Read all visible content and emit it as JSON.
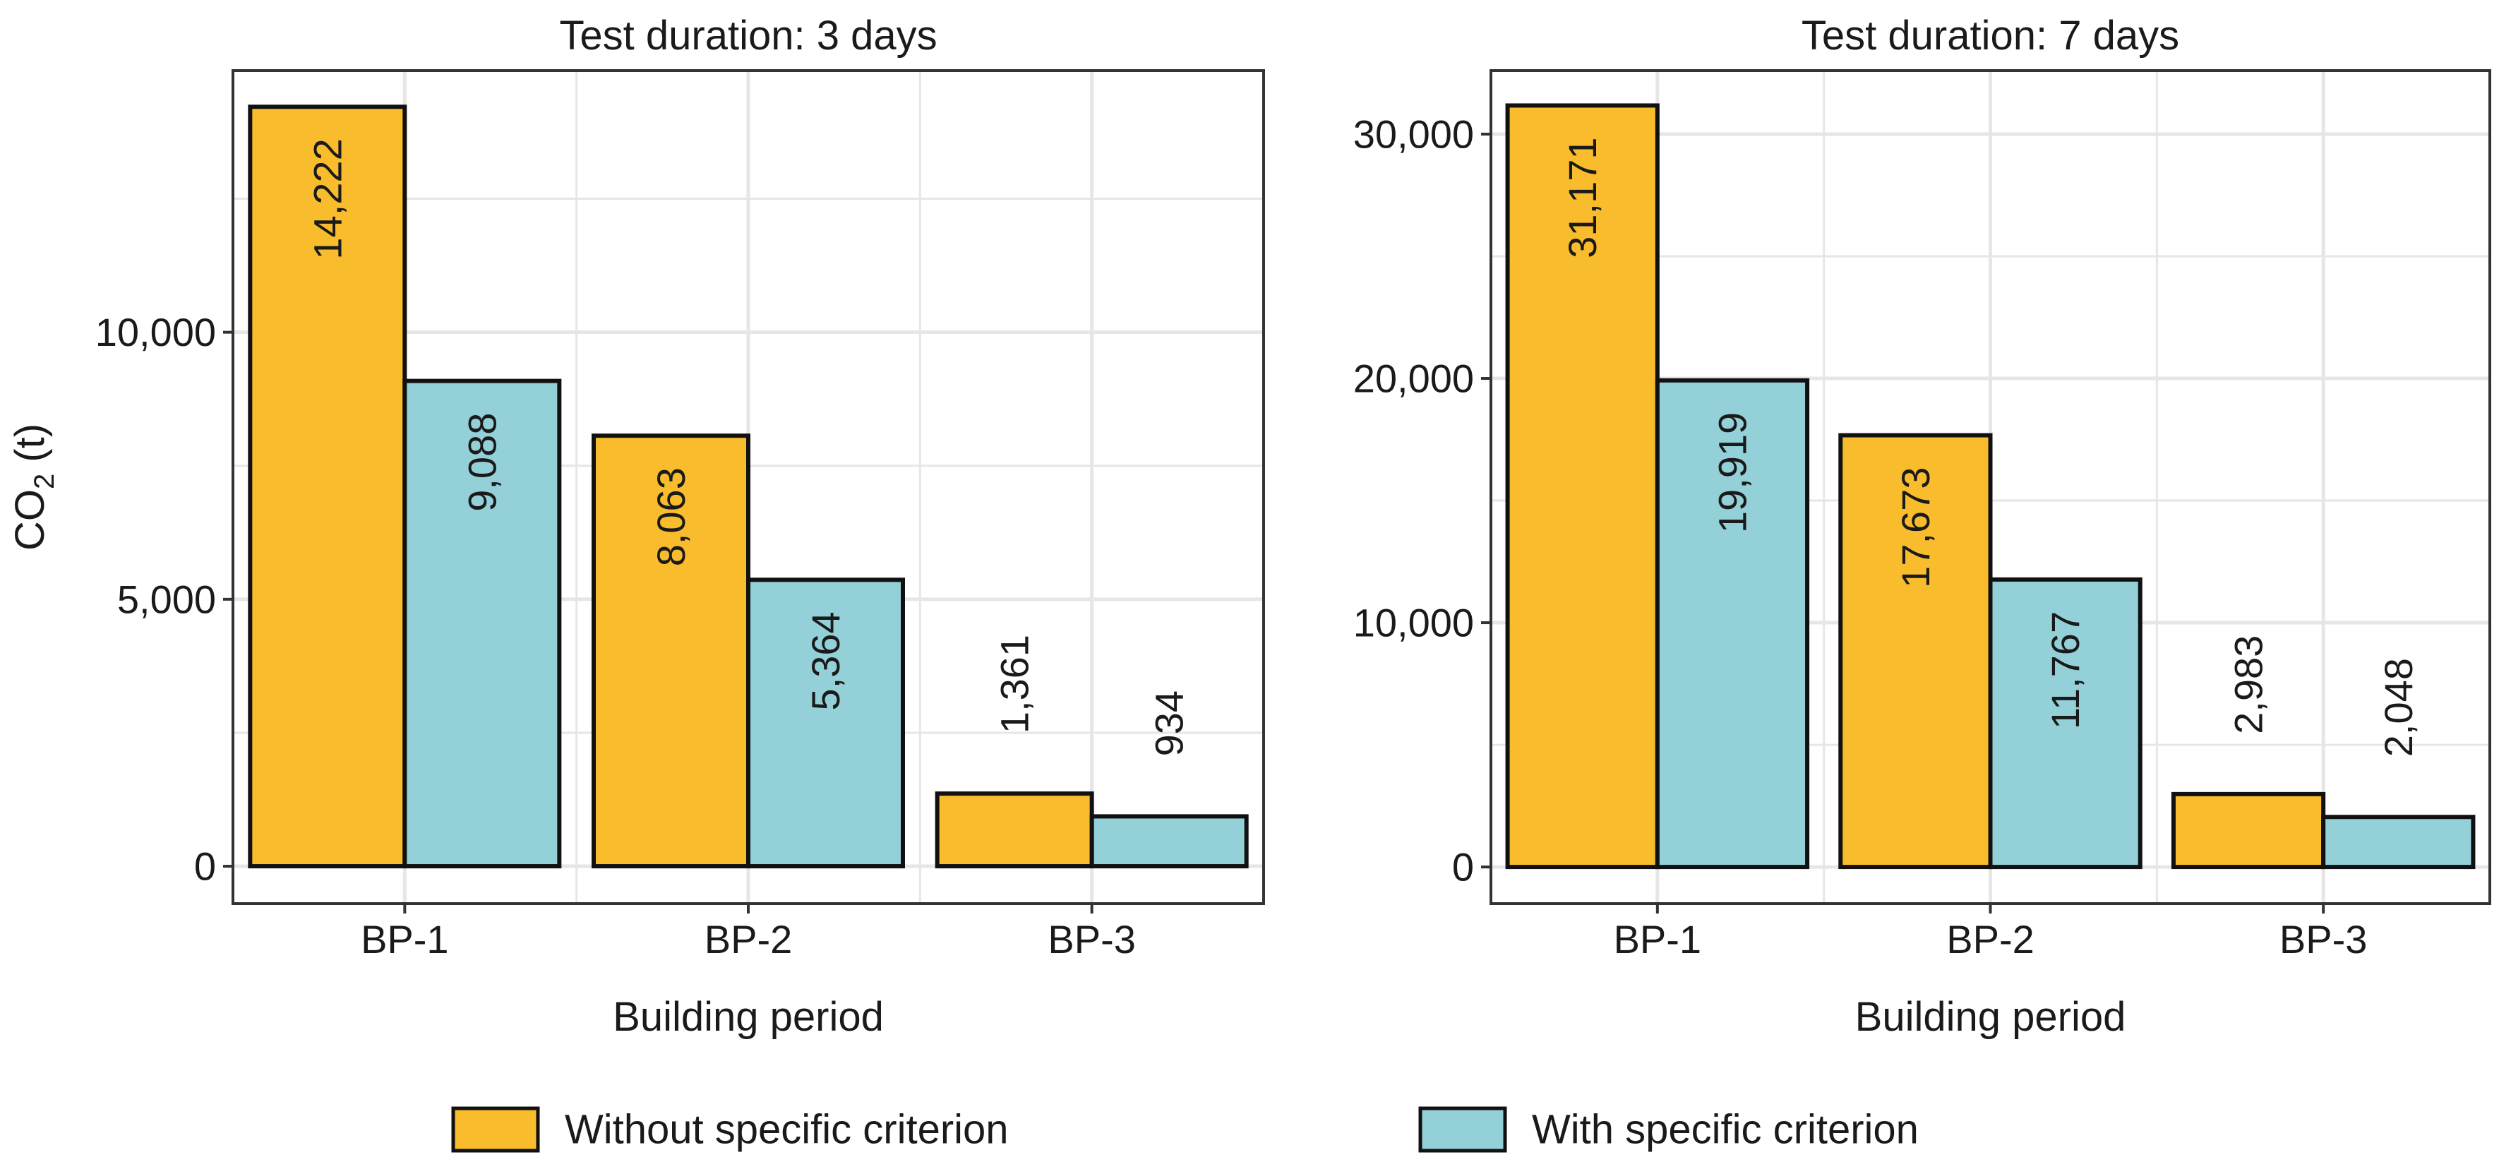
{
  "chart_data": {
    "type": "bar",
    "panels": [
      {
        "title": "Test duration: 3 days",
        "categories": [
          "BP-1",
          "BP-2",
          "BP-3"
        ],
        "series": [
          {
            "name": "Without specific criterion",
            "values": [
              14222,
              8063,
              1361
            ],
            "labels": [
              "14,222",
              "8,063",
              "1,361"
            ]
          },
          {
            "name": "With specific criterion",
            "values": [
              9088,
              5364,
              934
            ],
            "labels": [
              "9,088",
              "5,364",
              "934"
            ]
          }
        ],
        "yticks": [
          0,
          5000,
          10000
        ],
        "ytick_labels": [
          "0",
          "5,000",
          "10,000"
        ],
        "ylim": [
          -700,
          14900
        ],
        "xlabel": "Building period",
        "ylabel": "CO2 (t)"
      },
      {
        "title": "Test duration: 7 days",
        "categories": [
          "BP-1",
          "BP-2",
          "BP-3"
        ],
        "series": [
          {
            "name": "Without specific criterion",
            "values": [
              31171,
              17673,
              2983
            ],
            "labels": [
              "31,171",
              "17,673",
              "2,983"
            ]
          },
          {
            "name": "With specific criterion",
            "values": [
              19919,
              11767,
              2048
            ],
            "labels": [
              "19,919",
              "11,767",
              "2,048"
            ]
          }
        ],
        "yticks": [
          0,
          10000,
          20000,
          30000
        ],
        "ytick_labels": [
          "0",
          "10,000",
          "20,000",
          "30,000"
        ],
        "ylim": [
          -1500,
          32600
        ],
        "xlabel": "Building period",
        "ylabel": ""
      }
    ],
    "ylabel_text": {
      "main": "CO",
      "sub": "2",
      "unit": " (t)"
    },
    "legend": {
      "position": "bottom",
      "entries": [
        {
          "name": "Without specific criterion",
          "color": "#F9BC2C"
        },
        {
          "name": "With specific criterion",
          "color": "#93D0D8"
        }
      ]
    },
    "colors": {
      "series": [
        "#F9BC2C",
        "#93D0D8"
      ],
      "grid": "#e6e6e6",
      "border": "#333333"
    }
  }
}
